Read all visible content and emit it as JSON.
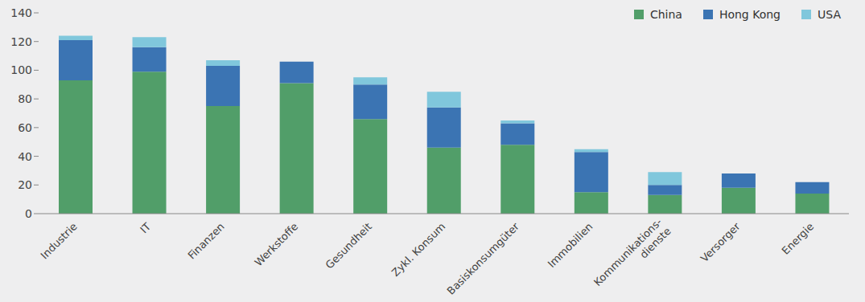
{
  "chart_data": {
    "type": "bar",
    "stacked": true,
    "categories": [
      "Industrie",
      "IT",
      "Finanzen",
      "Werkstoffe",
      "Gesundheit",
      "Zykl. Konsum",
      "Basiskonsumgüter",
      "Immobilien",
      "Kommunikations-\ndienste",
      "Versorger",
      "Energie"
    ],
    "series": [
      {
        "name": "China",
        "color": "#519e69",
        "values": [
          93,
          99,
          75,
          91,
          66,
          46,
          48,
          15,
          13,
          18,
          14
        ]
      },
      {
        "name": "Hong Kong",
        "color": "#3b74b3",
        "values": [
          28,
          17,
          28,
          15,
          24,
          28,
          15,
          28,
          7,
          10,
          8
        ]
      },
      {
        "name": "USA",
        "color": "#80c7dc",
        "values": [
          3,
          7,
          4,
          0,
          5,
          11,
          2,
          2,
          9,
          0,
          0
        ]
      }
    ],
    "ylim": [
      0,
      140
    ],
    "yticks": [
      0,
      20,
      40,
      60,
      80,
      100,
      120,
      140
    ],
    "grid": false,
    "legend": "top-right"
  }
}
